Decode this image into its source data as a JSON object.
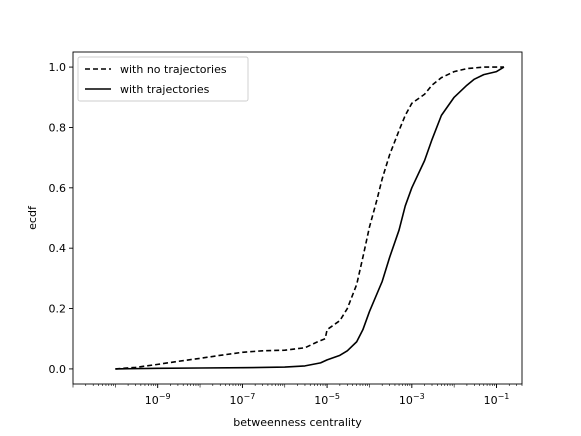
{
  "chart_data": {
    "type": "line",
    "xlabel": "betweenness centrality",
    "ylabel": "ecdf",
    "x_scale": "log",
    "xlim": [
      1e-11,
      0.4
    ],
    "ylim": [
      -0.05,
      1.05
    ],
    "x_ticks": [
      {
        "value": 1e-09,
        "label": "10",
        "exp": "−9"
      },
      {
        "value": 1e-07,
        "label": "10",
        "exp": "−7"
      },
      {
        "value": 1e-05,
        "label": "10",
        "exp": "−5"
      },
      {
        "value": 0.001,
        "label": "10",
        "exp": "−3"
      },
      {
        "value": 0.1,
        "label": "10",
        "exp": "−1"
      }
    ],
    "y_ticks": [
      0.0,
      0.2,
      0.4,
      0.6,
      0.8,
      1.0
    ],
    "y_tick_labels": [
      "0.0",
      "0.2",
      "0.4",
      "0.6",
      "0.8",
      "1.0"
    ],
    "grid": false,
    "legend_position": "top-left",
    "series": [
      {
        "name": "with no trajectories",
        "style": "dashed",
        "color": "#000000",
        "x": [
          1e-10,
          3e-10,
          1e-09,
          3e-09,
          1e-08,
          3e-08,
          1e-07,
          3e-07,
          1e-06,
          3e-06,
          6e-06,
          9e-06,
          1e-05,
          2e-05,
          3e-05,
          5e-05,
          7e-05,
          0.0001,
          0.00015,
          0.0002,
          0.0003,
          0.0005,
          0.0007,
          0.001,
          0.002,
          0.003,
          0.005,
          0.01,
          0.02,
          0.05,
          0.1,
          0.15
        ],
        "y": [
          0.0,
          0.005,
          0.015,
          0.025,
          0.035,
          0.045,
          0.055,
          0.06,
          0.062,
          0.07,
          0.09,
          0.1,
          0.13,
          0.16,
          0.2,
          0.28,
          0.37,
          0.47,
          0.56,
          0.63,
          0.71,
          0.79,
          0.84,
          0.88,
          0.91,
          0.94,
          0.965,
          0.985,
          0.995,
          1.0,
          1.0,
          1.0
        ]
      },
      {
        "name": "with trajectories",
        "style": "solid",
        "color": "#000000",
        "x": [
          1e-10,
          1e-09,
          1e-08,
          1e-07,
          1e-06,
          3e-06,
          7e-06,
          1e-05,
          2e-05,
          3e-05,
          5e-05,
          7e-05,
          0.0001,
          0.0002,
          0.0003,
          0.0005,
          0.0007,
          0.001,
          0.002,
          0.003,
          0.005,
          0.01,
          0.02,
          0.03,
          0.05,
          0.1,
          0.15
        ],
        "y": [
          0.0,
          0.002,
          0.003,
          0.004,
          0.006,
          0.01,
          0.02,
          0.03,
          0.045,
          0.06,
          0.09,
          0.13,
          0.19,
          0.29,
          0.37,
          0.46,
          0.54,
          0.6,
          0.69,
          0.76,
          0.84,
          0.9,
          0.94,
          0.96,
          0.975,
          0.985,
          1.0
        ]
      }
    ]
  }
}
